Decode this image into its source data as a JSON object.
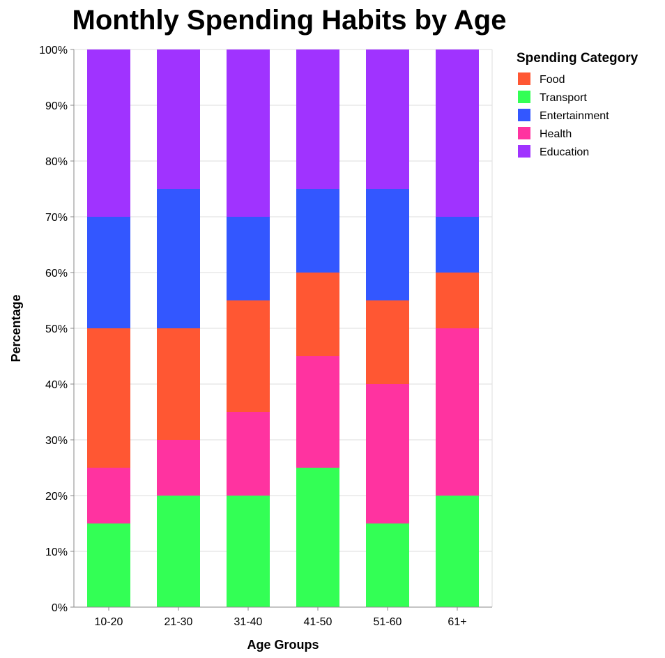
{
  "chart_data": {
    "type": "bar",
    "stacked": "normalized",
    "title": "Monthly Spending Habits by Age",
    "xlabel": "Age Groups",
    "ylabel": "Percentage",
    "ylim": [
      0,
      100
    ],
    "y_ticks": [
      "0%",
      "10%",
      "20%",
      "30%",
      "40%",
      "50%",
      "60%",
      "70%",
      "80%",
      "90%",
      "100%"
    ],
    "grid": true,
    "legend": {
      "title": "Spending Category",
      "placement": "right"
    },
    "categories": [
      "10-20",
      "21-30",
      "31-40",
      "41-50",
      "51-60",
      "61+"
    ],
    "series": [
      {
        "name": "Transport",
        "color": "#33ff55",
        "values": [
          15,
          20,
          20,
          25,
          15,
          20
        ]
      },
      {
        "name": "Health",
        "color": "#ff33a0",
        "values": [
          10,
          10,
          15,
          20,
          25,
          30
        ]
      },
      {
        "name": "Food",
        "color": "#ff5733",
        "values": [
          25,
          20,
          20,
          15,
          15,
          10
        ]
      },
      {
        "name": "Entertainment",
        "color": "#3357ff",
        "values": [
          20,
          25,
          15,
          15,
          20,
          10
        ]
      },
      {
        "name": "Education",
        "color": "#a033ff",
        "values": [
          30,
          25,
          30,
          25,
          25,
          30
        ]
      }
    ],
    "legend_order": [
      "Food",
      "Transport",
      "Entertainment",
      "Health",
      "Education"
    ]
  }
}
